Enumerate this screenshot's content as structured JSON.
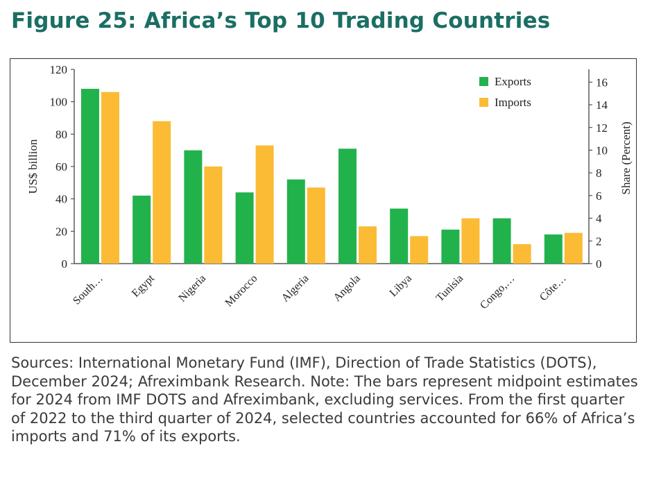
{
  "figure": {
    "title": "Figure 25: Africa’s Top 10 Trading Countries",
    "notes": "Sources: International Monetary Fund (IMF), Direction of Trade Statistics (DOTS), December 2024; Afreximbank Research. Note: The bars represent midpoint estimates for 2024 from IMF DOTS and Afreximbank, excluding services. From the first quarter of 2022 to the third quarter of 2024, selected countries accounted for 66% of Africa’s imports and 71% of its exports."
  },
  "chart_data": {
    "type": "bar",
    "categories": [
      "South…",
      "Egypt",
      "Nigeria",
      "Morocco",
      "Algeria",
      "Angola",
      "Libya",
      "Tunisia",
      "Congo,…",
      "Côte…"
    ],
    "series": [
      {
        "name": "Exports",
        "color": "#22b24c",
        "values": [
          108,
          42,
          70,
          44,
          52,
          71,
          34,
          21,
          28,
          18
        ]
      },
      {
        "name": "Imports",
        "color": "#fbbb34",
        "values": [
          106,
          88,
          60,
          73,
          47,
          23,
          17,
          28,
          12,
          19
        ]
      }
    ],
    "ylabel": "US$ billion",
    "ylim": [
      0,
      120
    ],
    "yticks": [
      "0",
      "20",
      "40",
      "60",
      "80",
      "100",
      "120"
    ],
    "y2label": "Share (Percent)",
    "y2lim": [
      0,
      17
    ],
    "y2ticks": [
      "0",
      "2",
      "4",
      "6",
      "8",
      "10",
      "12",
      "14",
      "16"
    ],
    "legend_position": "top-right",
    "grid": false
  }
}
